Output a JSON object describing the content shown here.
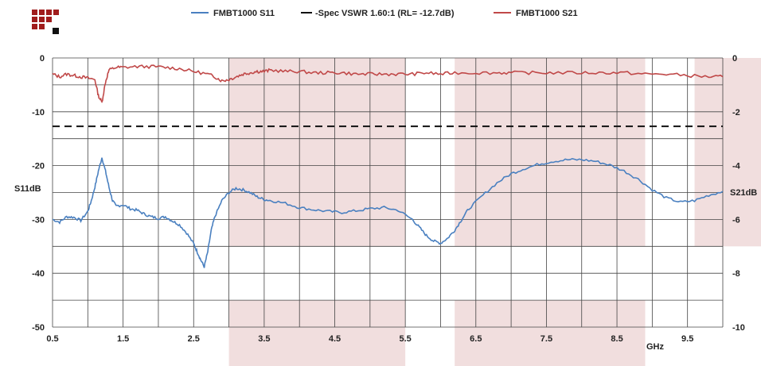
{
  "legend": {
    "s11_label": "FMBT1000 S11",
    "spec_label": "-Spec VSWR 1.60:1 (RL= -12.7dB)",
    "s21_label": "FMBT1000 S21"
  },
  "colors": {
    "s11": "#4a80c0",
    "s21": "#c04848",
    "spec": "#111111",
    "band_fill": "#f1dede",
    "logo_red": "#a01c1c",
    "logo_black": "#111111"
  },
  "chart_data": {
    "type": "line",
    "xlabel": "GHz",
    "ylabel_left": "S11dB",
    "ylabel_right": "S21dB",
    "xlim": [
      0.5,
      10.0
    ],
    "ylim_left": [
      -50,
      0
    ],
    "ylim_right": [
      -10,
      0
    ],
    "x_ticks": [
      "0.5",
      "1.5",
      "2.5",
      "3.5",
      "4.5",
      "5.5",
      "6.5",
      "7.5",
      "8.5",
      "9.5"
    ],
    "y_left_ticks": [
      "0",
      "-10",
      "-20",
      "-30",
      "-40",
      "-50"
    ],
    "y_right_ticks": [
      "0",
      "-2",
      "-4",
      "-6",
      "-8",
      "-10"
    ],
    "grid": true,
    "legend_position": "top",
    "shaded_bands": [
      {
        "x_start": 3.0,
        "x_end": 5.5,
        "y_top": 0,
        "y_bottom": -35
      },
      {
        "x_start": 3.0,
        "x_end": 5.5,
        "y_top": -45,
        "y_bottom": -50
      },
      {
        "x_start": 6.2,
        "x_end": 8.9,
        "y_top": 0,
        "y_bottom": -35
      },
      {
        "x_start": 6.2,
        "x_end": 8.9,
        "y_top": -45,
        "y_bottom": -50
      },
      {
        "x_start": 9.6,
        "x_end": 10.0,
        "y_top": 0,
        "y_bottom": -35
      }
    ],
    "spec_line": {
      "name": "-Spec VSWR 1.60:1 (RL= -12.7dB)",
      "y": -12.7,
      "axis": "left"
    },
    "series": [
      {
        "name": "FMBT1000 S11",
        "axis": "left",
        "x": [
          0.5,
          0.6,
          0.7,
          0.8,
          0.9,
          1.0,
          1.05,
          1.1,
          1.15,
          1.2,
          1.25,
          1.3,
          1.35,
          1.4,
          1.5,
          1.6,
          1.7,
          1.8,
          1.9,
          2.0,
          2.1,
          2.2,
          2.3,
          2.4,
          2.5,
          2.55,
          2.6,
          2.65,
          2.7,
          2.75,
          2.8,
          2.9,
          3.0,
          3.1,
          3.2,
          3.3,
          3.4,
          3.5,
          3.6,
          3.8,
          4.0,
          4.2,
          4.4,
          4.6,
          4.8,
          5.0,
          5.2,
          5.4,
          5.6,
          5.7,
          5.8,
          5.9,
          6.0,
          6.1,
          6.2,
          6.3,
          6.4,
          6.6,
          6.8,
          7.0,
          7.2,
          7.4,
          7.6,
          7.8,
          8.0,
          8.2,
          8.4,
          8.6,
          8.8,
          9.0,
          9.2,
          9.4,
          9.6,
          9.8,
          10.0
        ],
        "y": [
          -30,
          -30.5,
          -29.5,
          -29.6,
          -30.2,
          -28.5,
          -26.5,
          -24,
          -21,
          -18.5,
          -21,
          -24,
          -26.5,
          -27.5,
          -27.3,
          -28,
          -28.3,
          -29,
          -29.5,
          -29.8,
          -29.5,
          -30.3,
          -31,
          -32.5,
          -34.5,
          -36,
          -37.5,
          -38.8,
          -36,
          -32,
          -29.5,
          -26.5,
          -25,
          -24.2,
          -24.5,
          -25,
          -25.8,
          -26.3,
          -26.5,
          -27,
          -27.8,
          -28.2,
          -28.5,
          -28.7,
          -28.4,
          -28,
          -27.8,
          -28.3,
          -30,
          -31.5,
          -33,
          -34,
          -34.4,
          -33.5,
          -32,
          -30,
          -28,
          -25.5,
          -23.2,
          -21.5,
          -20.5,
          -19.7,
          -19.2,
          -18.9,
          -18.9,
          -19.2,
          -19.9,
          -21,
          -22.5,
          -24.5,
          -26,
          -26.8,
          -26.5,
          -25.5,
          -24.8
        ]
      },
      {
        "name": "FMBT1000 S21",
        "axis": "right",
        "x": [
          0.5,
          0.6,
          0.7,
          0.8,
          0.9,
          1.0,
          1.1,
          1.15,
          1.2,
          1.25,
          1.3,
          1.4,
          1.5,
          1.7,
          1.9,
          2.1,
          2.3,
          2.5,
          2.7,
          2.8,
          2.9,
          3.0,
          3.1,
          3.2,
          3.3,
          3.4,
          3.5,
          3.6,
          3.8,
          4.0,
          4.2,
          4.4,
          4.6,
          4.8,
          5.0,
          5.2,
          5.4,
          5.6,
          5.8,
          6.0,
          6.2,
          6.5,
          6.8,
          7.0,
          7.3,
          7.6,
          8.0,
          8.3,
          8.6,
          8.9,
          9.2,
          9.5,
          9.8,
          10.0
        ],
        "y": [
          -0.6,
          -0.7,
          -0.6,
          -0.65,
          -0.7,
          -0.75,
          -0.8,
          -1.4,
          -1.65,
          -0.9,
          -0.45,
          -0.35,
          -0.35,
          -0.32,
          -0.32,
          -0.35,
          -0.4,
          -0.5,
          -0.6,
          -0.7,
          -0.85,
          -0.8,
          -0.7,
          -0.6,
          -0.55,
          -0.5,
          -0.5,
          -0.45,
          -0.5,
          -0.5,
          -0.55,
          -0.55,
          -0.55,
          -0.6,
          -0.6,
          -0.6,
          -0.6,
          -0.6,
          -0.55,
          -0.6,
          -0.55,
          -0.55,
          -0.55,
          -0.55,
          -0.55,
          -0.55,
          -0.55,
          -0.55,
          -0.55,
          -0.6,
          -0.6,
          -0.65,
          -0.7,
          -0.7
        ]
      }
    ]
  }
}
